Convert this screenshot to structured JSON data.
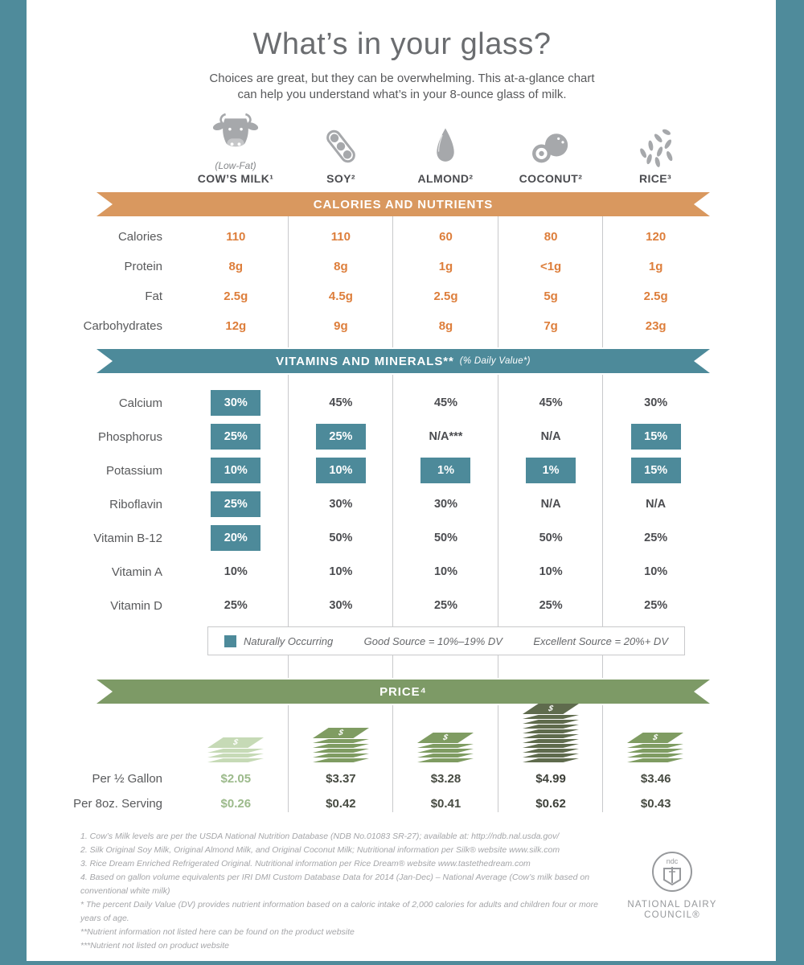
{
  "theme": {
    "frame": "#4f8b9b",
    "orange": "#d9985f",
    "orange-text": "#dd7e3b",
    "teal": "#4d8a9a",
    "green": "#7d9a66"
  },
  "header": {
    "title": "What’s in your glass?",
    "subtitle_line1": "Choices are great, but they can be overwhelming. This at-a-glance chart",
    "subtitle_line2": "can help you understand what’s in your 8-ounce glass of milk."
  },
  "columns": [
    {
      "pre_label": "(Low-Fat)",
      "label": "COW’S MILK¹",
      "icon": "cow-icon"
    },
    {
      "label": "SOY²",
      "icon": "soy-pod-icon"
    },
    {
      "label": "ALMOND²",
      "icon": "almond-icon"
    },
    {
      "label": "COCONUT²",
      "icon": "coconut-icon"
    },
    {
      "label": "RICE³",
      "icon": "rice-grains-icon"
    }
  ],
  "nutrients": {
    "banner": "CALORIES AND NUTRIENTS",
    "rows": [
      {
        "label": "Calories",
        "values": [
          "110",
          "110",
          "60",
          "80",
          "120"
        ]
      },
      {
        "label": "Protein",
        "values": [
          "8g",
          "8g",
          "1g",
          "<1g",
          "1g"
        ]
      },
      {
        "label": "Fat",
        "values": [
          "2.5g",
          "4.5g",
          "2.5g",
          "5g",
          "2.5g"
        ]
      },
      {
        "label": "Carbohydrates",
        "values": [
          "12g",
          "9g",
          "8g",
          "7g",
          "23g"
        ]
      }
    ]
  },
  "vitamins": {
    "banner": "VITAMINS AND MINERALS**",
    "banner_note": "(% Daily Value*)",
    "rows": [
      {
        "label": "Calcium",
        "cells": [
          {
            "value": "30%",
            "boxed": true
          },
          {
            "value": "45%",
            "boxed": false
          },
          {
            "value": "45%",
            "boxed": false
          },
          {
            "value": "45%",
            "boxed": false
          },
          {
            "value": "30%",
            "boxed": false
          }
        ]
      },
      {
        "label": "Phosphorus",
        "cells": [
          {
            "value": "25%",
            "boxed": true
          },
          {
            "value": "25%",
            "boxed": true
          },
          {
            "value": "N/A***",
            "boxed": false
          },
          {
            "value": "N/A",
            "boxed": false
          },
          {
            "value": "15%",
            "boxed": true
          }
        ]
      },
      {
        "label": "Potassium",
        "cells": [
          {
            "value": "10%",
            "boxed": true
          },
          {
            "value": "10%",
            "boxed": true
          },
          {
            "value": "1%",
            "boxed": true
          },
          {
            "value": "1%",
            "boxed": true
          },
          {
            "value": "15%",
            "boxed": true
          }
        ]
      },
      {
        "label": "Riboflavin",
        "cells": [
          {
            "value": "25%",
            "boxed": true
          },
          {
            "value": "30%",
            "boxed": false
          },
          {
            "value": "30%",
            "boxed": false
          },
          {
            "value": "N/A",
            "boxed": false
          },
          {
            "value": "N/A",
            "boxed": false
          }
        ]
      },
      {
        "label": "Vitamin B-12",
        "cells": [
          {
            "value": "20%",
            "boxed": true
          },
          {
            "value": "50%",
            "boxed": false
          },
          {
            "value": "50%",
            "boxed": false
          },
          {
            "value": "50%",
            "boxed": false
          },
          {
            "value": "25%",
            "boxed": false
          }
        ]
      },
      {
        "label": "Vitamin A",
        "cells": [
          {
            "value": "10%",
            "boxed": false
          },
          {
            "value": "10%",
            "boxed": false
          },
          {
            "value": "10%",
            "boxed": false
          },
          {
            "value": "10%",
            "boxed": false
          },
          {
            "value": "10%",
            "boxed": false
          }
        ]
      },
      {
        "label": "Vitamin D",
        "cells": [
          {
            "value": "25%",
            "boxed": false
          },
          {
            "value": "30%",
            "boxed": false
          },
          {
            "value": "25%",
            "boxed": false
          },
          {
            "value": "25%",
            "boxed": false
          },
          {
            "value": "25%",
            "boxed": false
          }
        ]
      }
    ],
    "legend": {
      "naturally_occurring": "Naturally Occurring",
      "good_source": "Good Source = 10%–19% DV",
      "excellent_source": "Excellent Source = 20%+ DV"
    }
  },
  "price": {
    "banner": "PRICE⁴",
    "row_labels": [
      "Per ½ Gallon",
      "Per 8oz. Serving"
    ],
    "columns": [
      {
        "per_half_gallon": "$2.05",
        "per_serving": "$0.26",
        "text_color": "#9cba8b",
        "stack": {
          "layers": 4,
          "fill": "#c6dab6",
          "sign": "#ffffff"
        }
      },
      {
        "per_half_gallon": "$3.37",
        "per_serving": "$0.42",
        "text_color": "#474b42",
        "stack": {
          "layers": 6,
          "fill": "#7f9c62",
          "sign": "#ffffff"
        }
      },
      {
        "per_half_gallon": "$3.28",
        "per_serving": "$0.41",
        "text_color": "#474b42",
        "stack": {
          "layers": 5,
          "fill": "#7f9c62",
          "sign": "#ffffff"
        }
      },
      {
        "per_half_gallon": "$4.99",
        "per_serving": "$0.62",
        "text_color": "#3d4039",
        "stack": {
          "layers": 11,
          "fill": "#5f6b4d",
          "sign": "#ffffff"
        }
      },
      {
        "per_half_gallon": "$3.46",
        "per_serving": "$0.43",
        "text_color": "#474b42",
        "stack": {
          "layers": 5,
          "fill": "#7f9c62",
          "sign": "#ffffff"
        }
      }
    ]
  },
  "footnotes": [
    "1. Cow’s Milk levels are per the USDA National Nutrition Database (NDB No.01083 SR-27); available at: http://ndb.nal.usda.gov/",
    "2. Silk Original Soy Milk, Original Almond Milk, and Original Coconut Milk; Nutritional information per Silk® website www.silk.com",
    "3. Rice Dream Enriched Refrigerated Original. Nutritional information per Rice Dream® website www.tastethedream.com",
    "4. Based on gallon volume equivalents per IRI DMI Custom Database Data for 2014 (Jan-Dec) – National Average (Cow’s milk based on conventional white milk)",
    "* The percent Daily Value (DV) provides nutrient information based on a caloric intake of 2,000 calories for adults and children four or more years of age.",
    "**Nutrient information not listed here can be found on the product website",
    "***Nutrient not listed on product website"
  ],
  "logo": {
    "monogram": "ndc",
    "line1": "NATIONAL DAIRY",
    "line2": "COUNCIL®"
  },
  "chart_data": {
    "type": "table",
    "title": "What’s in your glass?",
    "columns": [
      "Cow’s Milk (Low-Fat)",
      "Soy",
      "Almond",
      "Coconut",
      "Rice"
    ],
    "sections": [
      {
        "name": "Calories and Nutrients",
        "rows": [
          {
            "label": "Calories",
            "values": [
              110,
              110,
              60,
              80,
              120
            ]
          },
          {
            "label": "Protein (g)",
            "values": [
              "8",
              "8",
              "1",
              "<1",
              "1"
            ]
          },
          {
            "label": "Fat (g)",
            "values": [
              2.5,
              4.5,
              2.5,
              5,
              2.5
            ]
          },
          {
            "label": "Carbohydrates (g)",
            "values": [
              12,
              9,
              8,
              7,
              23
            ]
          }
        ]
      },
      {
        "name": "Vitamins and Minerals (% Daily Value)",
        "naturally_occurring_flags_note": "true = naturally occurring (teal box)",
        "rows": [
          {
            "label": "Calcium",
            "values": [
              "30%",
              "45%",
              "45%",
              "45%",
              "30%"
            ],
            "naturally_occurring": [
              true,
              false,
              false,
              false,
              false
            ]
          },
          {
            "label": "Phosphorus",
            "values": [
              "25%",
              "25%",
              "N/A***",
              "N/A",
              "15%"
            ],
            "naturally_occurring": [
              true,
              true,
              false,
              false,
              true
            ]
          },
          {
            "label": "Potassium",
            "values": [
              "10%",
              "10%",
              "1%",
              "1%",
              "15%"
            ],
            "naturally_occurring": [
              true,
              true,
              true,
              true,
              true
            ]
          },
          {
            "label": "Riboflavin",
            "values": [
              "25%",
              "30%",
              "30%",
              "N/A",
              "N/A"
            ],
            "naturally_occurring": [
              true,
              false,
              false,
              false,
              false
            ]
          },
          {
            "label": "Vitamin B-12",
            "values": [
              "20%",
              "50%",
              "50%",
              "50%",
              "25%"
            ],
            "naturally_occurring": [
              true,
              false,
              false,
              false,
              false
            ]
          },
          {
            "label": "Vitamin A",
            "values": [
              "10%",
              "10%",
              "10%",
              "10%",
              "10%"
            ],
            "naturally_occurring": [
              false,
              false,
              false,
              false,
              false
            ]
          },
          {
            "label": "Vitamin D",
            "values": [
              "25%",
              "30%",
              "25%",
              "25%",
              "25%"
            ],
            "naturally_occurring": [
              false,
              false,
              false,
              false,
              false
            ]
          }
        ],
        "legend": [
          "Naturally Occurring",
          "Good Source = 10%–19% DV",
          "Excellent Source = 20%+ DV"
        ]
      },
      {
        "name": "Price",
        "rows": [
          {
            "label": "Per ½ Gallon ($)",
            "values": [
              2.05,
              3.37,
              3.28,
              4.99,
              3.46
            ]
          },
          {
            "label": "Per 8oz. Serving ($)",
            "values": [
              0.26,
              0.42,
              0.41,
              0.62,
              0.43
            ]
          }
        ]
      }
    ]
  }
}
